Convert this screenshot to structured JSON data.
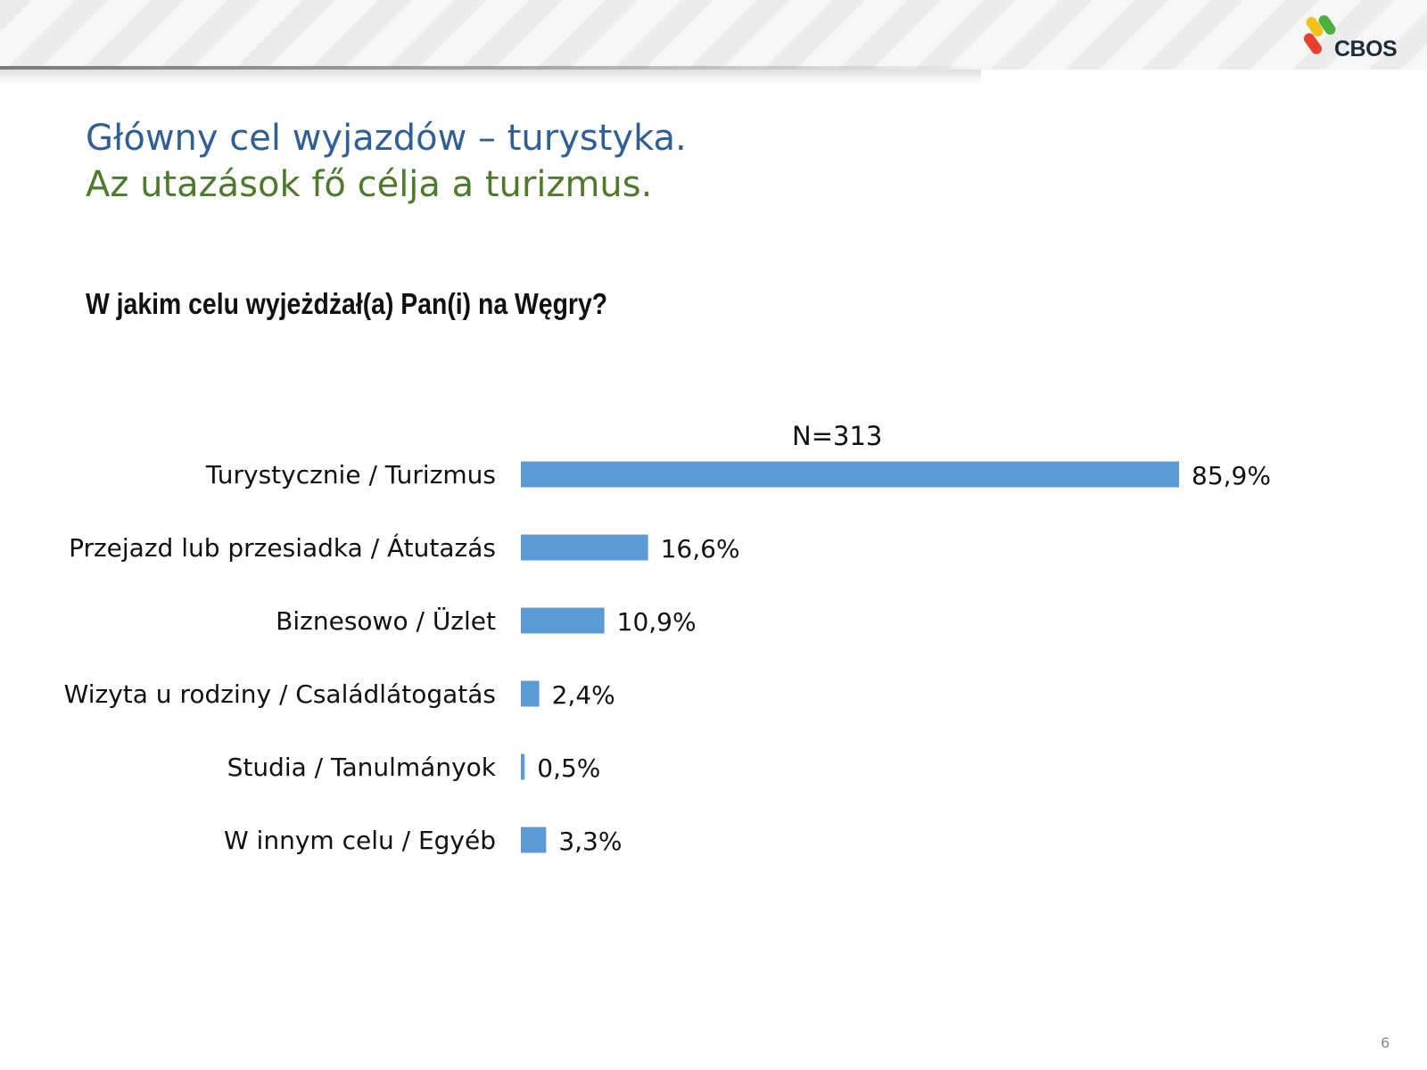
{
  "header": {
    "logo_text": "CBOS",
    "logo_colors": [
      "#f2c21b",
      "#4caf3e",
      "#e8402f"
    ]
  },
  "slide": {
    "title_pl": "Główny cel wyjazdów – turystyka.",
    "title_hu": "Az utazások fő célja a turizmus.",
    "question": "W jakim celu wyjeżdżał(a) Pan(i) na Węgry?",
    "sample_label": "N=313",
    "page_number": "6"
  },
  "chart_data": {
    "type": "bar",
    "orientation": "horizontal",
    "categories": [
      "Turystycznie / Turizmus",
      "Przejazd lub przesiadka / Átutazás",
      "Biznesowo / Üzlet",
      "Wizyta u rodziny / Családlátogatás",
      "Studia / Tanulmányok",
      "W innym celu / Egyéb"
    ],
    "values": [
      85.9,
      16.6,
      10.9,
      2.4,
      0.5,
      3.3
    ],
    "data_labels": [
      "85,9%",
      "16,6%",
      "10,9%",
      "2,4%",
      "0,5%",
      "3,3%"
    ],
    "xlim": [
      0,
      100
    ],
    "unit": "%",
    "bar_color": "#5b9bd5",
    "grid": false,
    "legend": "none"
  }
}
